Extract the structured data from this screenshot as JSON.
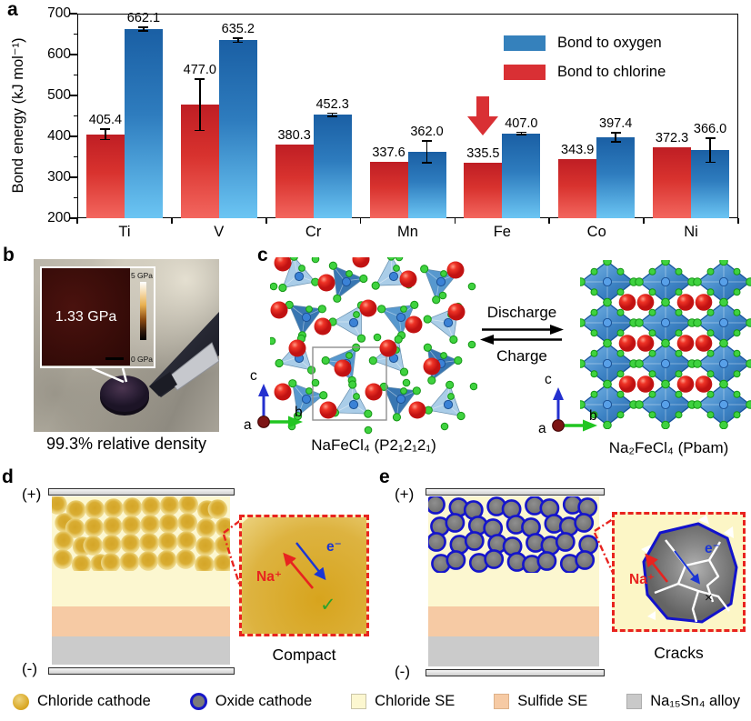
{
  "panel_letters": {
    "a": "a",
    "b": "b",
    "c": "c",
    "d": "d",
    "e": "e"
  },
  "chart_data": {
    "type": "bar",
    "title": "",
    "xlabel": "",
    "ylabel": "Bond energy (kJ mol⁻¹)",
    "ylim": [
      200,
      700
    ],
    "yticks_major": [
      200,
      300,
      400,
      500,
      600,
      700
    ],
    "yticks_minor": [
      250,
      350,
      450,
      550,
      650
    ],
    "categories": [
      "Ti",
      "V",
      "Cr",
      "Mn",
      "Fe",
      "Co",
      "Ni"
    ],
    "series": [
      {
        "name": "Bond to chlorine",
        "values": [
          405.4,
          477.0,
          380.3,
          337.6,
          335.5,
          343.9,
          372.3
        ],
        "errors": [
          13,
          63,
          0,
          0,
          0,
          0,
          0
        ],
        "color_top": "#bf1e24",
        "color_mid": "#d8322e",
        "color_bottom": "#f3665e"
      },
      {
        "name": "Bond to oxygen",
        "values": [
          662.1,
          635.2,
          452.3,
          362.0,
          407.0,
          397.4,
          366.0
        ],
        "errors": [
          4,
          5,
          4,
          27,
          3,
          11,
          29
        ],
        "color_top": "#1a5fa4",
        "color_mid": "#2e7cbe",
        "color_bottom": "#6bc5f3"
      }
    ],
    "legend": [
      {
        "label": "Bond to oxygen",
        "color": "#3581bc"
      },
      {
        "label": "Bond to chlorine",
        "color": "#d93034"
      }
    ],
    "legend_position": "upper right",
    "grid": false,
    "annotation": {
      "shape": "down-arrow",
      "color": "#d93034",
      "category": "Fe",
      "series_index": 0
    }
  },
  "panel_b": {
    "inset_value": "1.33 GPa",
    "scale_top": "5 GPa",
    "scale_bottom": "0 GPa",
    "caption": "99.3% relative density"
  },
  "panel_c": {
    "left_formula": "NaFeCl₄ (P2₁2₁2₁)",
    "right_formula": "Na₂FeCl₄ (Pbam)",
    "forward": "Discharge",
    "backward": "Charge",
    "axis": {
      "a": "a",
      "b": "b",
      "c": "c"
    }
  },
  "panel_d": {
    "positive": "(+)",
    "negative": "(-)",
    "label": "Compact",
    "ion": "Na⁺",
    "electron": "e⁻",
    "check": "✓"
  },
  "panel_e": {
    "positive": "(+)",
    "negative": "(-)",
    "label": "Cracks",
    "ion": "Na⁺",
    "electron": "e⁻",
    "cross": "×"
  },
  "bottom_legend": {
    "items": [
      {
        "label": "Chloride cathode"
      },
      {
        "label": "Oxide cathode"
      },
      {
        "label": "Chloride SE"
      },
      {
        "label": "Sulfide SE"
      },
      {
        "label": "Na₁₅Sn₄ alloy"
      }
    ]
  }
}
